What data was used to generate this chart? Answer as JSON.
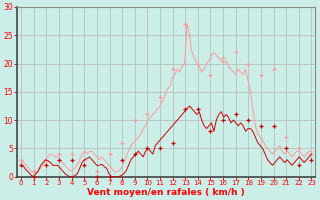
{
  "background_color": "#cceee8",
  "grid_color": "#aaaaaa",
  "ylim": [
    0,
    30
  ],
  "yticks": [
    0,
    5,
    10,
    15,
    20,
    25,
    30
  ],
  "xlim": [
    0,
    23
  ],
  "xticks": [
    0,
    1,
    2,
    3,
    4,
    5,
    6,
    7,
    8,
    9,
    10,
    11,
    12,
    13,
    14,
    15,
    16,
    17,
    18,
    19,
    20,
    21,
    22,
    23
  ],
  "xlabel": "Vent moyen/en rafales ( km/h )",
  "color_avg": "#cc0000",
  "color_gust": "#ff9999",
  "wind_avg": [
    2,
    0,
    2,
    3,
    3,
    2,
    0,
    0,
    3,
    4,
    5,
    5,
    6,
    12,
    12,
    8,
    10,
    11,
    10,
    9,
    9,
    5,
    2,
    3
  ],
  "wind_gust": [
    3,
    1,
    3,
    4,
    4,
    3,
    1,
    4,
    6,
    10,
    11,
    14,
    19,
    27,
    20,
    18,
    21,
    22,
    20,
    18,
    19,
    7,
    5,
    4
  ],
  "wind_avg_hf": [
    2.0,
    1.8,
    1.2,
    0.8,
    0.3,
    0.0,
    0.5,
    1.0,
    2.0,
    2.5,
    3.0,
    2.8,
    2.5,
    2.0,
    2.0,
    2.0,
    1.5,
    1.0,
    0.5,
    0.2,
    0.0,
    0.0,
    0.2,
    0.5,
    1.5,
    2.5,
    3.0,
    3.2,
    3.5,
    3.0,
    2.5,
    2.0,
    2.0,
    2.2,
    1.8,
    1.5,
    0.5,
    0.0,
    0.0,
    0.0,
    0.0,
    0.2,
    0.5,
    1.0,
    2.0,
    3.0,
    3.5,
    4.0,
    4.5,
    4.0,
    3.5,
    4.5,
    5.0,
    4.5,
    4.0,
    5.5,
    6.0,
    6.5,
    7.0,
    7.5,
    8.0,
    8.5,
    9.0,
    9.5,
    10.0,
    10.5,
    11.0,
    11.5,
    12.0,
    12.5,
    12.0,
    11.5,
    11.0,
    11.5,
    10.0,
    9.0,
    8.5,
    9.0,
    9.5,
    8.0,
    10.0,
    11.0,
    11.5,
    10.5,
    11.0,
    10.5,
    9.5,
    10.0,
    9.5,
    9.0,
    9.5,
    9.0,
    8.0,
    8.5,
    8.5,
    8.0,
    7.0,
    6.0,
    5.5,
    5.0,
    4.0,
    3.0,
    2.5,
    2.0,
    2.5,
    3.0,
    3.5,
    3.0,
    2.5,
    3.0,
    2.5,
    2.0,
    2.5,
    3.0,
    3.5,
    3.0,
    2.5,
    3.0,
    3.5,
    4.0
  ],
  "wind_gust_hf": [
    3.0,
    2.5,
    2.0,
    1.5,
    1.0,
    0.8,
    0.5,
    1.0,
    1.5,
    2.0,
    3.0,
    3.5,
    4.0,
    3.8,
    3.5,
    3.5,
    3.0,
    2.5,
    2.0,
    1.5,
    1.0,
    1.2,
    1.5,
    2.0,
    3.0,
    4.0,
    4.5,
    4.0,
    4.5,
    4.5,
    4.0,
    3.5,
    3.0,
    3.5,
    3.0,
    2.5,
    2.0,
    1.5,
    1.0,
    0.8,
    1.0,
    1.5,
    2.5,
    3.5,
    4.5,
    5.5,
    6.0,
    6.5,
    7.0,
    7.5,
    8.5,
    9.0,
    10.0,
    10.5,
    11.0,
    11.5,
    12.0,
    12.5,
    13.5,
    14.5,
    15.5,
    16.0,
    17.5,
    18.0,
    19.0,
    18.5,
    19.5,
    20.0,
    27.0,
    25.0,
    22.0,
    21.0,
    20.0,
    19.5,
    18.5,
    19.0,
    20.0,
    20.5,
    21.5,
    22.0,
    21.5,
    21.0,
    20.5,
    20.0,
    20.5,
    19.5,
    19.0,
    18.5,
    18.0,
    19.0,
    18.5,
    18.0,
    19.0,
    17.0,
    15.0,
    12.0,
    9.0,
    7.5,
    7.0,
    6.5,
    5.5,
    5.0,
    4.5,
    4.0,
    4.5,
    5.0,
    5.5,
    4.5,
    4.0,
    4.5,
    4.0,
    3.5,
    4.0,
    4.5,
    4.5,
    4.0,
    3.5,
    4.0,
    4.5,
    4.5
  ]
}
